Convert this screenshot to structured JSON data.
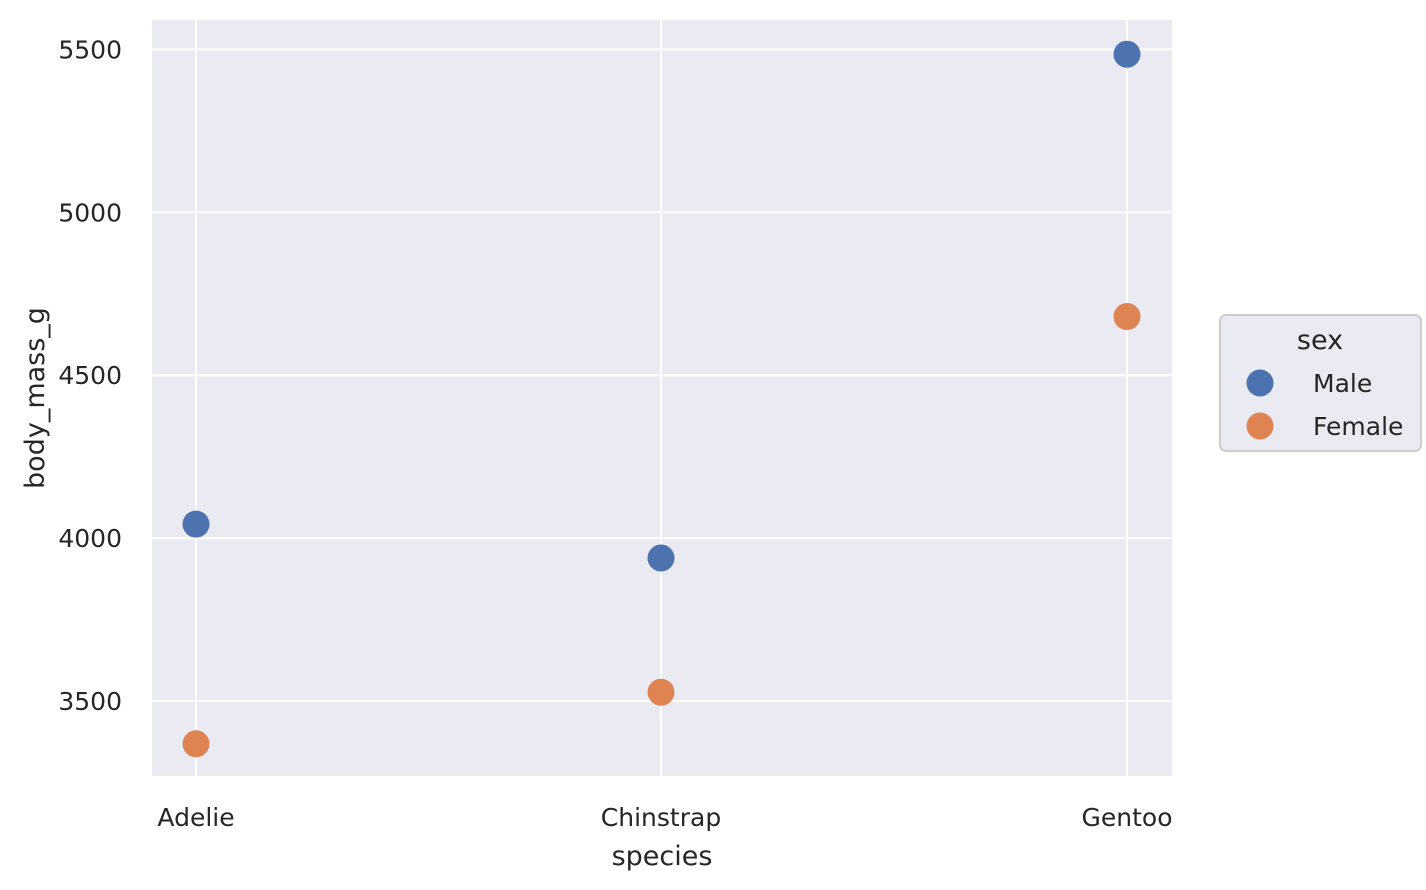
{
  "chart_data": {
    "type": "scatter",
    "categories": [
      "Adelie",
      "Chinstrap",
      "Gentoo"
    ],
    "xlabel": "species",
    "ylabel": "body_mass_g",
    "yticks": [
      3500,
      4000,
      4500,
      5000,
      5500
    ],
    "ylim": [
      3270,
      5590
    ],
    "grid": true,
    "legend": {
      "title": "sex",
      "placement": "right"
    },
    "series": [
      {
        "name": "Male",
        "color": "#4c72b0",
        "values": [
          4043,
          3939,
          5485
        ]
      },
      {
        "name": "Female",
        "color": "#dd8452",
        "values": [
          3369,
          3527,
          4680
        ]
      }
    ],
    "colors": {
      "plot_background": "#eaeaf2",
      "grid": "#ffffff"
    }
  }
}
